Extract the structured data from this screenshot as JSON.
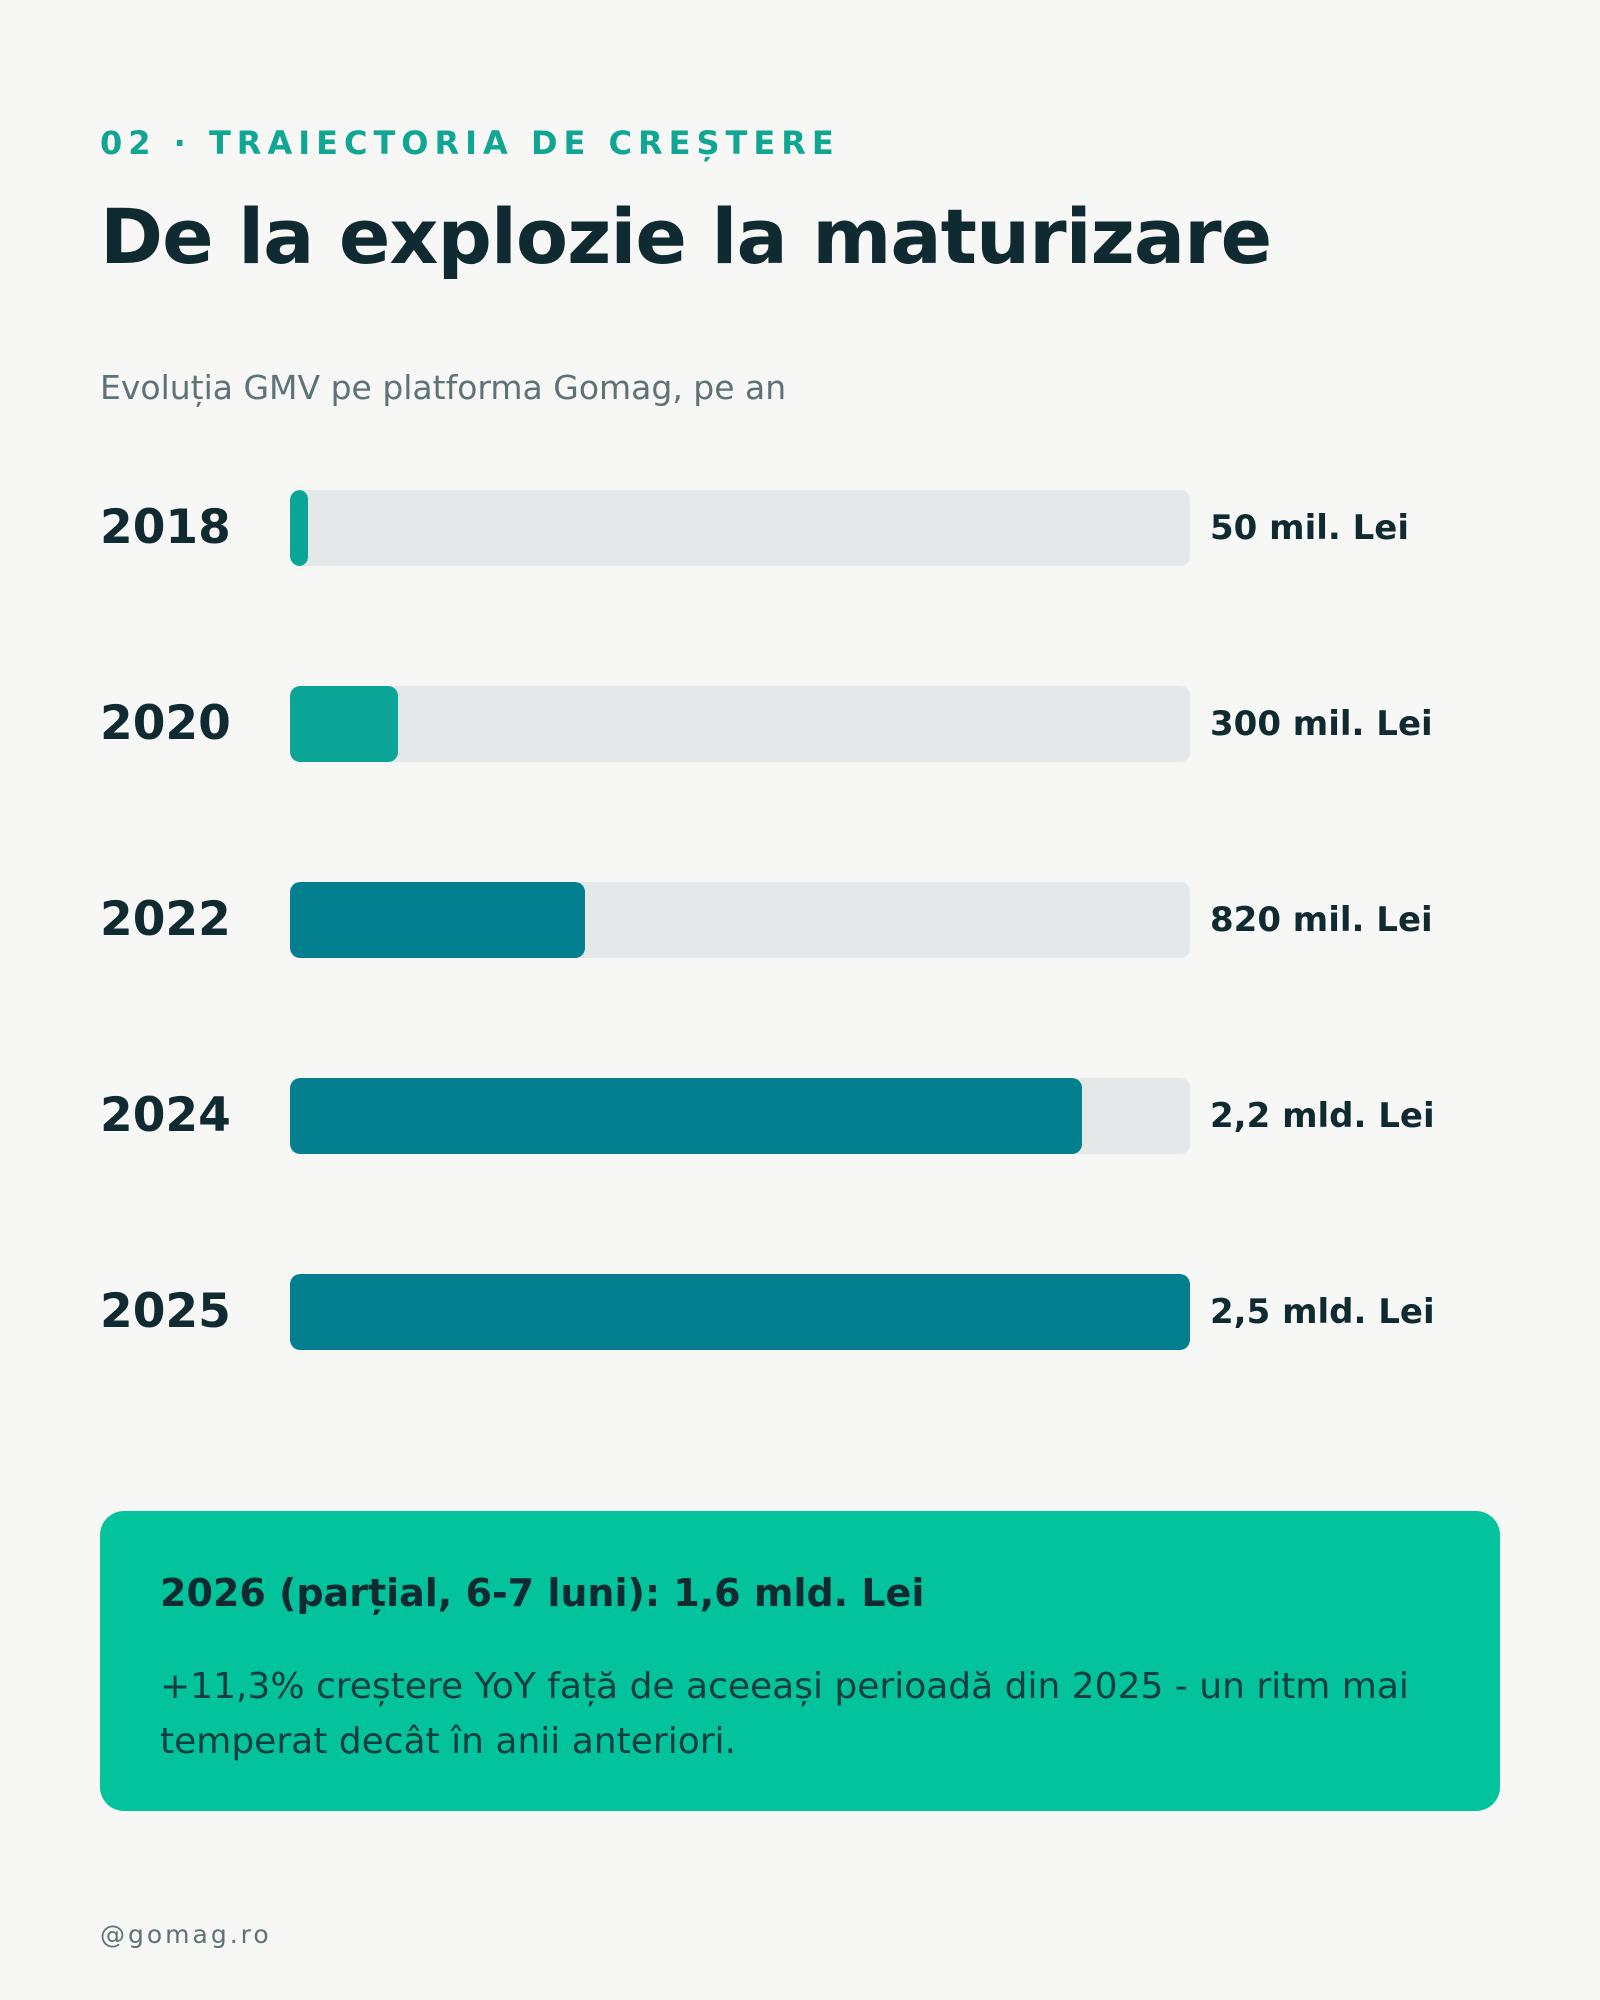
{
  "header": {
    "eyebrow": "02 · TRAIECTORIA DE CREȘTERE",
    "title": "De la explozie la maturizare",
    "subtitle": "Evoluția GMV pe platforma Gomag, pe an"
  },
  "colors": {
    "accent": "#10a693",
    "bar_light": "#0aa596",
    "bar_dark": "#047f8f",
    "track": "#e4e8e8",
    "callout_bg": "#03c39c",
    "text_dark": "#0f2a30"
  },
  "chart_data": {
    "type": "bar",
    "orientation": "horizontal",
    "categories": [
      "2018",
      "2020",
      "2022",
      "2024",
      "2025"
    ],
    "values": [
      0.05,
      0.3,
      0.82,
      2.2,
      2.5
    ],
    "value_labels": [
      "50 mil. Lei",
      "300 mil. Lei",
      "820 mil. Lei",
      "2,2 mld. Lei",
      "2,5 mld. Lei"
    ],
    "unit": "mld. Lei",
    "xlim": [
      0,
      2.5
    ],
    "bar_colors": [
      "#0aa596",
      "#0aa596",
      "#047f8f",
      "#047f8f",
      "#047f8f"
    ],
    "grid": false
  },
  "callout": {
    "heading": "2026 (parțial, 6-7 luni): 1,6 mld. Lei",
    "body": "+11,3% creștere YoY față de aceeași perioadă din 2025 - un ritm mai temperat decât în anii anteriori."
  },
  "footer": {
    "handle": "@gomag.ro"
  }
}
